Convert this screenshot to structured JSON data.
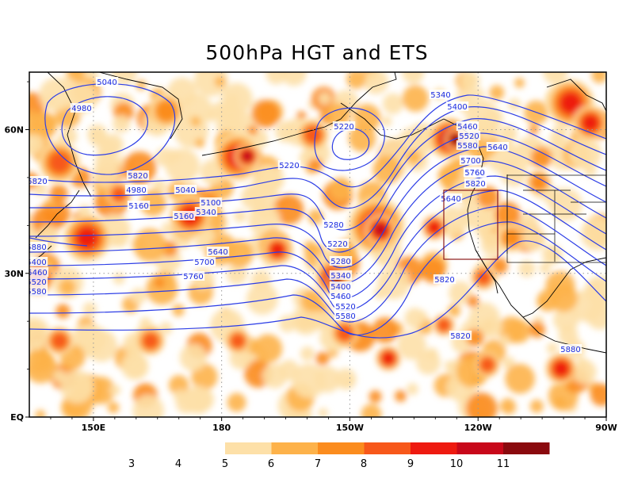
{
  "title": "500hPa HGT and ETS",
  "colors": {
    "contour": "#2d3ee6",
    "coast": "#000000",
    "box": "#8b1a1a",
    "grid": "#9a9a9a"
  },
  "map": {
    "lon_range": [
      "135E",
      "90W"
    ],
    "lat_range": [
      "EQ",
      "72N"
    ],
    "projection": "cylindrical"
  },
  "axis_labels": {
    "x": [
      {
        "text": "150E",
        "lon": 150
      },
      {
        "text": "180",
        "lon": 180
      },
      {
        "text": "150W",
        "lon": 210
      },
      {
        "text": "120W",
        "lon": 240
      },
      {
        "text": "90W",
        "lon": 270
      }
    ],
    "y": [
      {
        "text": "60N",
        "lat": 60
      },
      {
        "text": "30N",
        "lat": 30
      },
      {
        "text": "EQ",
        "lat": 0
      }
    ]
  },
  "contour_labels": [
    {
      "text": "5040"
    },
    {
      "text": "4980"
    },
    {
      "text": "5220"
    },
    {
      "text": "5340"
    },
    {
      "text": "5400"
    },
    {
      "text": "5460"
    },
    {
      "text": "5520"
    },
    {
      "text": "5580"
    },
    {
      "text": "5640"
    },
    {
      "text": "5700"
    },
    {
      "text": "5760"
    },
    {
      "text": "5820"
    },
    {
      "text": "4980"
    },
    {
      "text": "5040"
    },
    {
      "text": "5100"
    },
    {
      "text": "5160"
    },
    {
      "text": "5220"
    },
    {
      "text": "5160"
    },
    {
      "text": "5280"
    },
    {
      "text": "5340"
    },
    {
      "text": "5220"
    },
    {
      "text": "5280"
    },
    {
      "text": "5340"
    },
    {
      "text": "5400"
    },
    {
      "text": "5460"
    },
    {
      "text": "5520"
    },
    {
      "text": "5580"
    },
    {
      "text": "5640"
    },
    {
      "text": "5700"
    },
    {
      "text": "5760"
    },
    {
      "text": "5760"
    },
    {
      "text": "5820"
    },
    {
      "text": "5880"
    },
    {
      "text": "5400"
    },
    {
      "text": "5460"
    },
    {
      "text": "5520"
    },
    {
      "text": "5580"
    },
    {
      "text": "5640"
    },
    {
      "text": "5820"
    },
    {
      "text": "5820"
    },
    {
      "text": "5820"
    },
    {
      "text": "5880"
    }
  ],
  "legend": {
    "labels": [
      "3",
      "4",
      "5",
      "6",
      "7",
      "8",
      "9",
      "10",
      "11"
    ],
    "bins": [
      {
        "color": "#fde0a8"
      },
      {
        "color": "#fdb24a"
      },
      {
        "color": "#fb8c1e"
      },
      {
        "color": "#f7581a"
      },
      {
        "color": "#ee1a10"
      },
      {
        "color": "#c8081a"
      },
      {
        "color": "#8a0a0e"
      }
    ]
  },
  "shading_levels": [
    {
      "level": 5,
      "color": "#fde0a8"
    },
    {
      "level": 6,
      "color": "#fdb24a"
    },
    {
      "level": 7,
      "color": "#fb8c1e"
    },
    {
      "level": 8,
      "color": "#f7581a"
    },
    {
      "level": 9,
      "color": "#ee1a10"
    },
    {
      "level": 10,
      "color": "#c8081a"
    },
    {
      "level": 11,
      "color": "#8a0a0e"
    }
  ]
}
